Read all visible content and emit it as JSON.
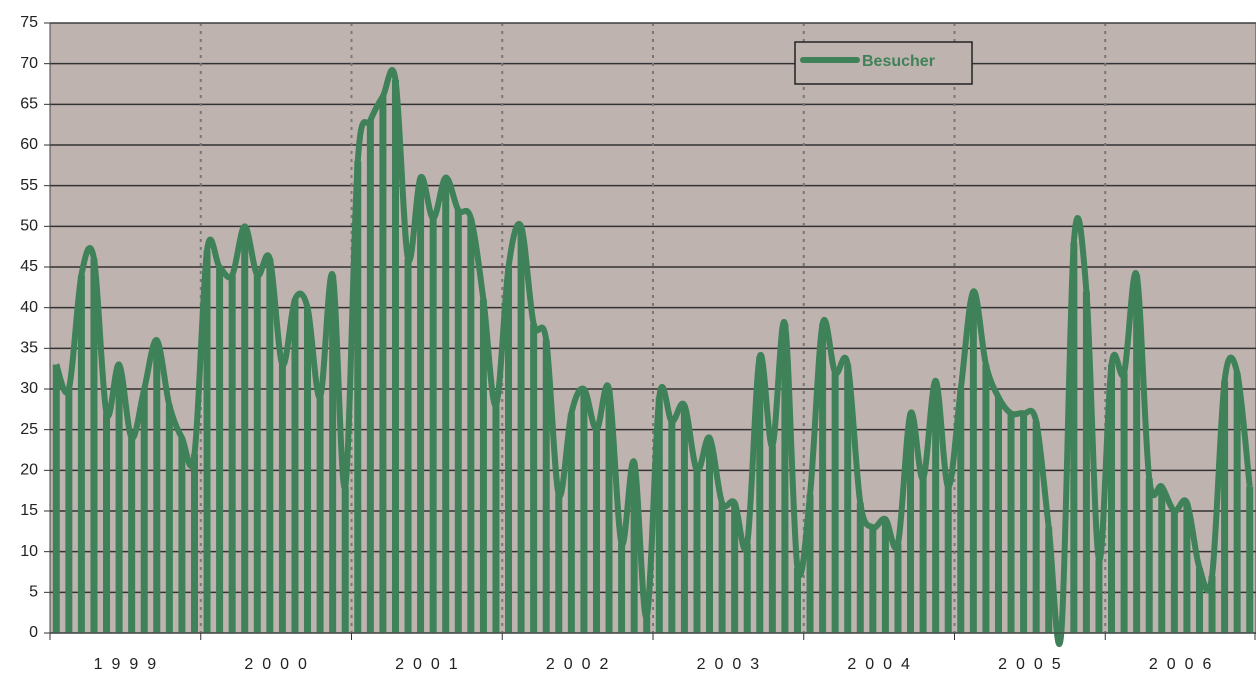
{
  "chart_data": {
    "type": "bar-line",
    "years": [
      "1999",
      "2000",
      "2001",
      "2002",
      "2003",
      "2004",
      "2005",
      "2006"
    ],
    "series": [
      {
        "name": "Besucher",
        "color": "#3f8158",
        "values": [
          33,
          30,
          44,
          46,
          27,
          33,
          24,
          30,
          36,
          28,
          24,
          22,
          47,
          45,
          44,
          50,
          44,
          46,
          33,
          41,
          40,
          29,
          44,
          18,
          58,
          63,
          66,
          68,
          46,
          56,
          51,
          56,
          52,
          51,
          41,
          28,
          45,
          50,
          38,
          36,
          17,
          27,
          30,
          25,
          30,
          11,
          21,
          2,
          29,
          26,
          28,
          20,
          24,
          16,
          16,
          11,
          34,
          23,
          38,
          8,
          17,
          38,
          32,
          33,
          16,
          13,
          14,
          11,
          27,
          19,
          31,
          18,
          30,
          42,
          33,
          29,
          27,
          27,
          26,
          13,
          0,
          48,
          42,
          9,
          33,
          32,
          44,
          19,
          18,
          15,
          16,
          8,
          7,
          31,
          32,
          18
        ]
      }
    ],
    "ylim": [
      0,
      75
    ],
    "yticks": [
      0,
      5,
      10,
      15,
      20,
      25,
      30,
      35,
      40,
      45,
      50,
      55,
      60,
      65,
      70,
      75
    ],
    "grid": true,
    "background": "#bfb3b0",
    "legend": "top-right"
  }
}
